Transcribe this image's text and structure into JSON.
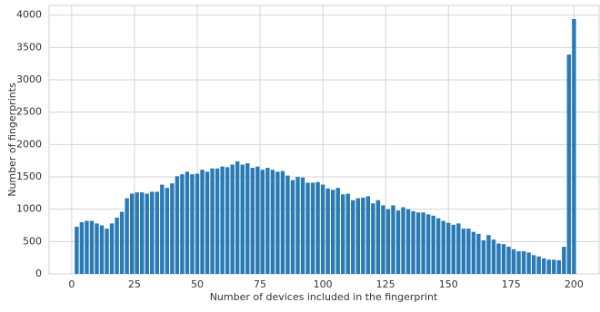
{
  "chart_data": {
    "type": "bar",
    "xlabel": "Number of devices included in the fingerprint",
    "ylabel": "Number of fingerprints",
    "x": [
      2,
      4,
      6,
      8,
      10,
      12,
      14,
      16,
      18,
      20,
      22,
      24,
      26,
      28,
      30,
      32,
      34,
      36,
      38,
      40,
      42,
      44,
      46,
      48,
      50,
      52,
      54,
      56,
      58,
      60,
      62,
      64,
      66,
      68,
      70,
      72,
      74,
      76,
      78,
      80,
      82,
      84,
      86,
      88,
      90,
      92,
      94,
      96,
      98,
      100,
      102,
      104,
      106,
      108,
      110,
      112,
      114,
      116,
      118,
      120,
      122,
      124,
      126,
      128,
      130,
      132,
      134,
      136,
      138,
      140,
      142,
      144,
      146,
      148,
      150,
      152,
      154,
      156,
      158,
      160,
      162,
      164,
      166,
      168,
      170,
      172,
      174,
      176,
      178,
      180,
      182,
      184,
      186,
      188,
      190,
      192,
      194,
      196,
      198,
      200
    ],
    "values": [
      730,
      800,
      820,
      820,
      780,
      750,
      700,
      780,
      870,
      960,
      1170,
      1240,
      1260,
      1260,
      1240,
      1270,
      1270,
      1380,
      1330,
      1400,
      1510,
      1540,
      1580,
      1540,
      1550,
      1610,
      1580,
      1630,
      1630,
      1660,
      1650,
      1690,
      1740,
      1690,
      1710,
      1640,
      1660,
      1610,
      1640,
      1610,
      1580,
      1590,
      1520,
      1450,
      1500,
      1490,
      1410,
      1410,
      1420,
      1380,
      1320,
      1300,
      1330,
      1230,
      1240,
      1140,
      1170,
      1180,
      1200,
      1090,
      1140,
      1060,
      1000,
      1060,
      980,
      1030,
      1000,
      970,
      950,
      950,
      920,
      900,
      860,
      820,
      790,
      760,
      780,
      700,
      700,
      650,
      620,
      520,
      600,
      530,
      470,
      460,
      420,
      380,
      350,
      350,
      330,
      290,
      270,
      240,
      220,
      220,
      210,
      420,
      3390,
      3940
    ],
    "color": "#2a7ab6",
    "xlim": [
      -9,
      210
    ],
    "xticks": [
      0,
      25,
      50,
      75,
      100,
      125,
      150,
      175,
      200
    ],
    "ylim": [
      0,
      4150
    ],
    "yticks": [
      0,
      500,
      1000,
      1500,
      2000,
      2500,
      3000,
      3500,
      4000
    ],
    "grid": true
  }
}
